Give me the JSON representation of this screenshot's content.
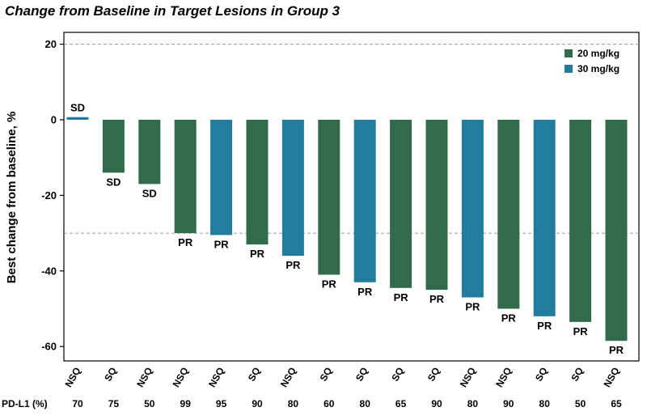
{
  "chart_data": {
    "type": "bar",
    "title": "Change from Baseline in Target Lesions in Group 3",
    "ylabel": "Best change from baseline, %",
    "ylim": [
      -65,
      22
    ],
    "yticks": [
      20,
      0,
      -20,
      -40,
      -60
    ],
    "reference_lines": [
      20,
      -30
    ],
    "legend_position": "top-right",
    "series": [
      {
        "name": "20 mg/kg",
        "color": "#326b4b"
      },
      {
        "name": "30 mg/kg",
        "color": "#217c9e"
      }
    ],
    "row_label": "PD-L1 (%)",
    "bars": [
      {
        "value": 0.7,
        "series": 1,
        "response": "SD",
        "histology": "NSQ",
        "pdl1": "70"
      },
      {
        "value": -14,
        "series": 0,
        "response": "SD",
        "histology": "SQ",
        "pdl1": "75"
      },
      {
        "value": -17,
        "series": 0,
        "response": "SD",
        "histology": "NSQ",
        "pdl1": "50"
      },
      {
        "value": -30,
        "series": 0,
        "response": "PR",
        "histology": "NSQ",
        "pdl1": "99"
      },
      {
        "value": -30.5,
        "series": 1,
        "response": "PR",
        "histology": "NSQ",
        "pdl1": "95"
      },
      {
        "value": -33,
        "series": 0,
        "response": "PR",
        "histology": "SQ",
        "pdl1": "90"
      },
      {
        "value": -36,
        "series": 1,
        "response": "PR",
        "histology": "NSQ",
        "pdl1": "80"
      },
      {
        "value": -41,
        "series": 0,
        "response": "PR",
        "histology": "SQ",
        "pdl1": "60"
      },
      {
        "value": -43,
        "series": 1,
        "response": "PR",
        "histology": "SQ",
        "pdl1": "80"
      },
      {
        "value": -44.5,
        "series": 0,
        "response": "PR",
        "histology": "SQ",
        "pdl1": "65"
      },
      {
        "value": -45,
        "series": 0,
        "response": "PR",
        "histology": "SQ",
        "pdl1": "90"
      },
      {
        "value": -47,
        "series": 1,
        "response": "PR",
        "histology": "NSQ",
        "pdl1": "80"
      },
      {
        "value": -50,
        "series": 0,
        "response": "PR",
        "histology": "NSQ",
        "pdl1": "90"
      },
      {
        "value": -52,
        "series": 1,
        "response": "PR",
        "histology": "SQ",
        "pdl1": "80"
      },
      {
        "value": -53.5,
        "series": 0,
        "response": "PR",
        "histology": "SQ",
        "pdl1": "50"
      },
      {
        "value": -58.5,
        "series": 0,
        "response": "PR",
        "histology": "NSQ",
        "pdl1": "65"
      }
    ]
  }
}
